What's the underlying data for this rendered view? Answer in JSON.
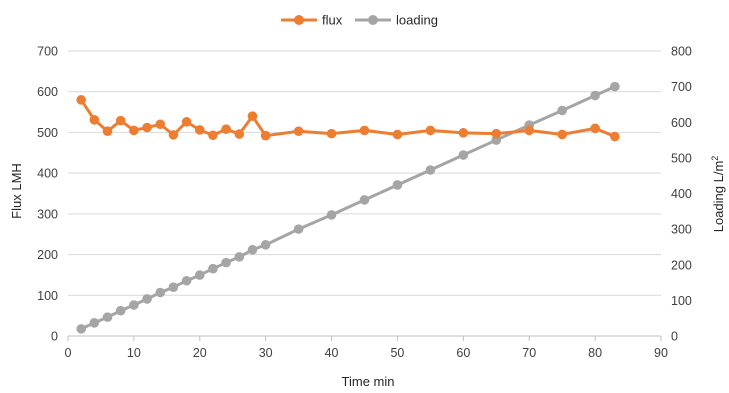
{
  "chart_data": {
    "type": "line",
    "title": "",
    "xlabel": "Time min",
    "ylabel": "Flux LMH",
    "y2label_main": "Loading L/m",
    "y2label_sup": "2",
    "xlim": [
      0,
      90
    ],
    "xticks": [
      0,
      10,
      20,
      30,
      40,
      50,
      60,
      70,
      80,
      90
    ],
    "ylim": [
      0,
      700
    ],
    "yticks": [
      0,
      100,
      200,
      300,
      400,
      500,
      600,
      700
    ],
    "y2lim": [
      0,
      800
    ],
    "y2ticks": [
      0,
      100,
      200,
      300,
      400,
      500,
      600,
      700,
      800
    ],
    "grid": "horizontal",
    "legend_position": "top",
    "series": [
      {
        "name": "flux",
        "axis": "left",
        "color": "#ED7D31",
        "x": [
          2,
          4,
          6,
          8,
          10,
          12,
          14,
          16,
          18,
          20,
          22,
          24,
          26,
          28,
          30,
          35,
          40,
          45,
          50,
          55,
          60,
          65,
          70,
          75,
          80,
          83
        ],
        "y": [
          580,
          531,
          503,
          529,
          505,
          512,
          520,
          494,
          526,
          506,
          493,
          508,
          496,
          540,
          492,
          503,
          497,
          505,
          495,
          505,
          499,
          497,
          505,
          495,
          510,
          490
        ]
      },
      {
        "name": "loading",
        "axis": "right",
        "color": "#A5A5A5",
        "x": [
          2,
          4,
          6,
          8,
          10,
          12,
          14,
          16,
          18,
          20,
          22,
          24,
          26,
          28,
          30,
          35,
          40,
          45,
          50,
          55,
          60,
          65,
          70,
          75,
          80,
          83
        ],
        "y": [
          20,
          37,
          53,
          71,
          87,
          104,
          122,
          137,
          155,
          171,
          189,
          206,
          222,
          242,
          256,
          300,
          340,
          382,
          424,
          466,
          508,
          550,
          592,
          633,
          675,
          700
        ]
      }
    ]
  }
}
